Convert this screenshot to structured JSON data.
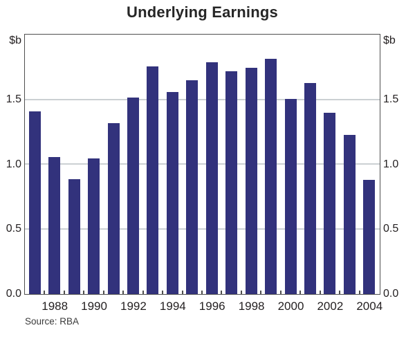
{
  "chart_data": {
    "type": "bar",
    "title": "Underlying Earnings",
    "categories": [
      "1987",
      "1988",
      "1989",
      "1990",
      "1991",
      "1992",
      "1993",
      "1994",
      "1995",
      "1996",
      "1997",
      "1998",
      "1999",
      "2000",
      "2001",
      "2002",
      "2003",
      "2004"
    ],
    "values": [
      1.41,
      1.06,
      0.89,
      1.05,
      1.32,
      1.52,
      1.76,
      1.56,
      1.65,
      1.79,
      1.72,
      1.75,
      1.82,
      1.51,
      1.63,
      1.4,
      1.23,
      0.88
    ],
    "xlabel": "",
    "ylabel_left": "$b",
    "ylabel_right": "$b",
    "ylim": [
      0.0,
      2.0
    ],
    "y_ticks": [
      0.0,
      0.5,
      1.0,
      1.5
    ],
    "y_tick_labels": [
      "0.0",
      "0.5",
      "1.0",
      "1.5"
    ],
    "x_tick_labels": [
      "1988",
      "1990",
      "1992",
      "1994",
      "1996",
      "1998",
      "2000",
      "2002",
      "2004"
    ],
    "grid": "horizontal gridlines at 0.5, 1.0, 1.5; labels on both left and right axes",
    "legend": "none",
    "source": "Source: RBA",
    "colors": {
      "bar": "#32327c",
      "gridline": "#cbd0d3",
      "axis_frame": "#4e4e4e",
      "text": "#231f20",
      "background": "#ffffff"
    }
  }
}
